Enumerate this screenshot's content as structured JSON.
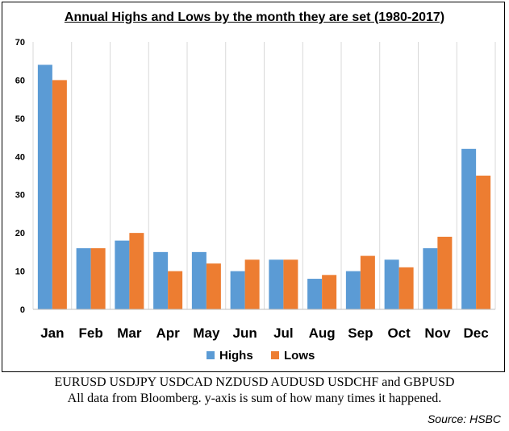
{
  "chart_data": {
    "type": "bar",
    "title": "Annual Highs and Lows by the month they are set (1980-2017)",
    "categories": [
      "Jan",
      "Feb",
      "Mar",
      "Apr",
      "May",
      "Jun",
      "Jul",
      "Aug",
      "Sep",
      "Oct",
      "Nov",
      "Dec"
    ],
    "series": [
      {
        "name": "Highs",
        "color": "#5b9bd5",
        "values": [
          64,
          16,
          18,
          15,
          15,
          10,
          13,
          8,
          10,
          13,
          16,
          42
        ]
      },
      {
        "name": "Lows",
        "color": "#ed7d31",
        "values": [
          60,
          16,
          20,
          10,
          12,
          13,
          13,
          9,
          14,
          11,
          19,
          35
        ]
      }
    ],
    "ylim": [
      0,
      70
    ],
    "yticks": [
      "0",
      "10",
      "20",
      "30",
      "40",
      "50",
      "60",
      "70"
    ],
    "xlabel": "",
    "ylabel": "",
    "grid": "vertical",
    "legend": "bottom"
  },
  "captions": {
    "line1": "EURUSD USDJPY USDCAD NZDUSD AUDUSD USDCHF and GBPUSD",
    "line2": "All data from Bloomberg. y-axis is sum of how many times it happened.",
    "source": "Source: HSBC"
  }
}
